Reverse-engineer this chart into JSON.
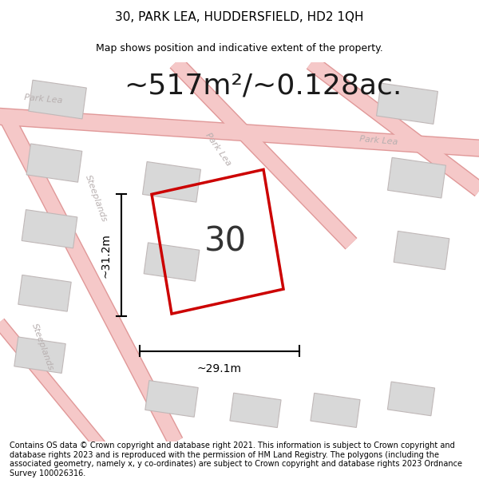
{
  "title": "30, PARK LEA, HUDDERSFIELD, HD2 1QH",
  "subtitle": "Map shows position and indicative extent of the property.",
  "area_text": "~517m²/~0.128ac.",
  "number_label": "30",
  "dim_width": "~29.1m",
  "dim_height": "~31.2m",
  "footer": "Contains OS data © Crown copyright and database right 2021. This information is subject to Crown copyright and database rights 2023 and is reproduced with the permission of HM Land Registry. The polygons (including the associated geometry, namely x, y co-ordinates) are subject to Crown copyright and database rights 2023 Ordnance Survey 100026316.",
  "map_bg": "#f2f0f0",
  "road_color_light": "#f5c8c8",
  "road_color_dark": "#e8a0a0",
  "building_fill": "#d8d8d8",
  "building_edge": "#c0b8b8",
  "plot_color": "#cc0000",
  "street_label_color": "#b8b0b0",
  "title_fontsize": 11,
  "subtitle_fontsize": 9,
  "area_fontsize": 26,
  "number_fontsize": 30,
  "dim_fontsize": 10,
  "footer_fontsize": 7.0
}
